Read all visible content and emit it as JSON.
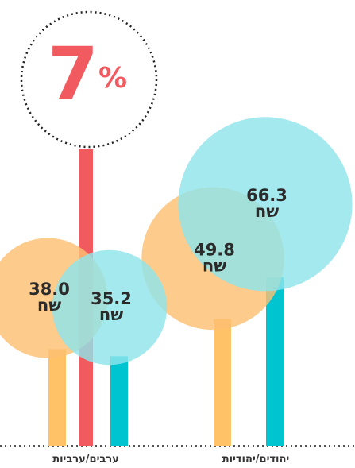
{
  "chart_data": {
    "type": "bubble-bar",
    "categories": [
      "יהודים/יהודיות",
      "ערבים/ערביות"
    ],
    "unit": "שח",
    "ylim": [
      0,
      120
    ],
    "y2lim": [
      0,
      7.2
    ],
    "series": [
      {
        "color": "#ffc266",
        "bubble_color": "#fdbf73",
        "values": [
          49.8,
          38.0
        ],
        "value_labels": [
          "49.8",
          "38.0"
        ]
      },
      {
        "color": "#00c4cf",
        "bubble_color": "#8fe4ea",
        "values": [
          66.3,
          35.2
        ],
        "value_labels": [
          "66.3",
          "35.2"
        ]
      },
      {
        "color": "#f15b60",
        "axis": "y2",
        "values": [
          null,
          7
        ],
        "value_labels": [
          null,
          "7%"
        ]
      }
    ]
  }
}
